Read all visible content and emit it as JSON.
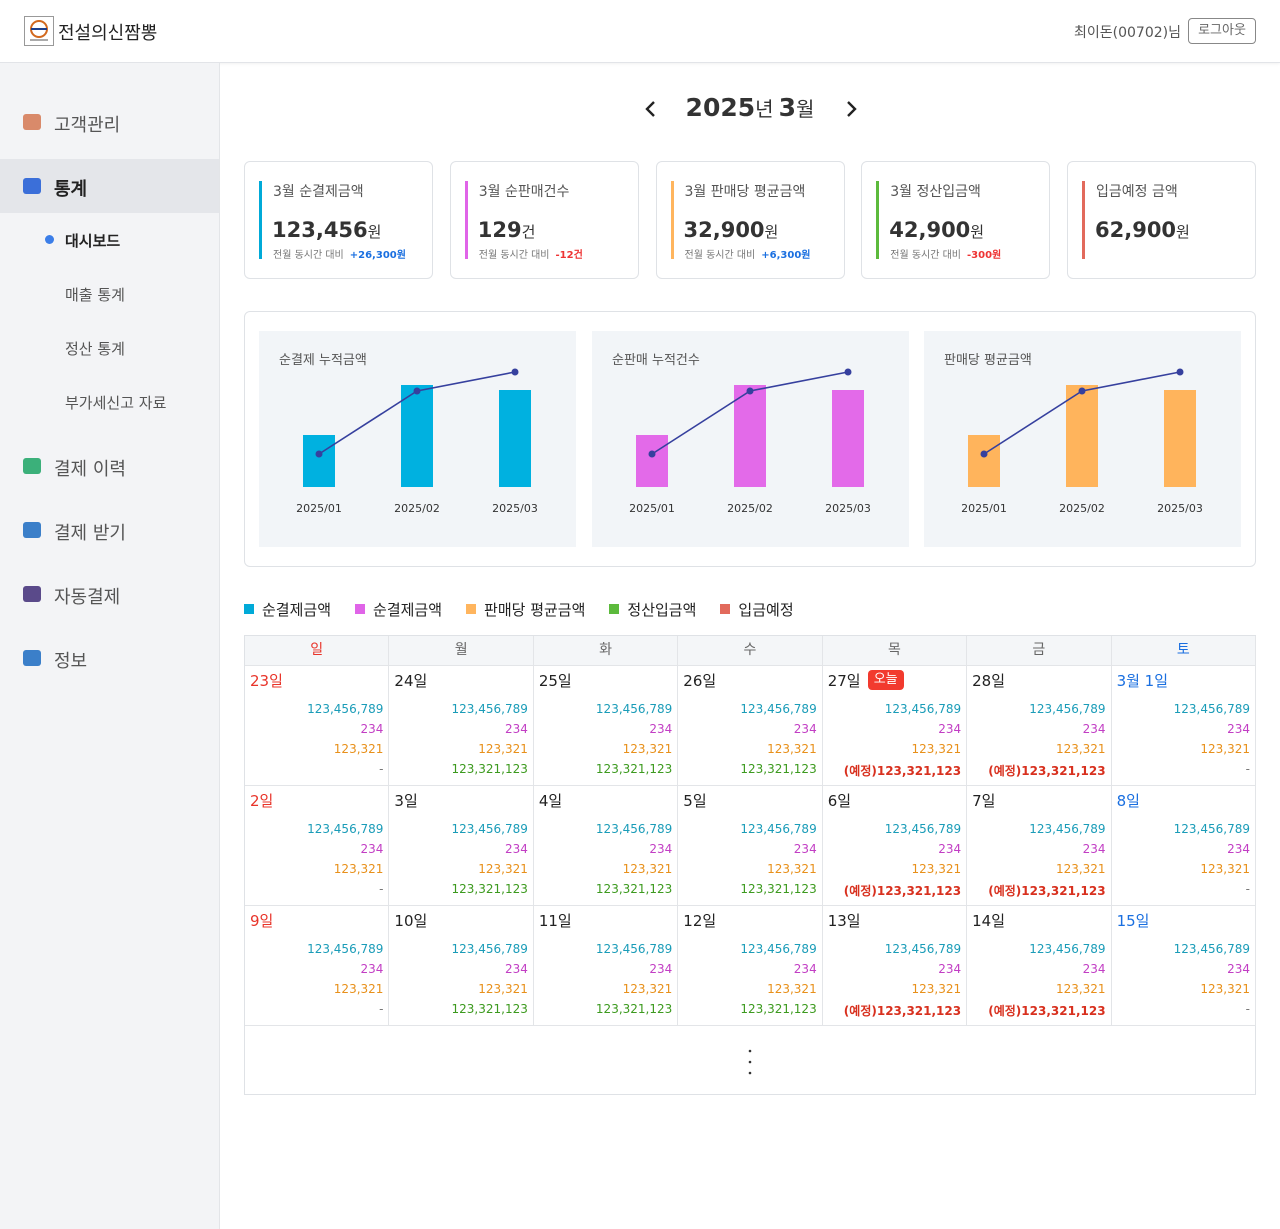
{
  "header": {
    "brand": "전설의신짬뽕",
    "user": "최이돈(00702)님",
    "logout": "로그아웃"
  },
  "sidebar": {
    "menu": [
      {
        "label": "고객관리"
      },
      {
        "label": "통계",
        "active": true,
        "children": [
          {
            "label": "대시보드",
            "active": true
          },
          {
            "label": "매출 통계"
          },
          {
            "label": "정산 통계"
          },
          {
            "label": "부가세신고 자료"
          }
        ]
      },
      {
        "label": "결제 이력"
      },
      {
        "label": "결제 받기"
      },
      {
        "label": "자동결제"
      },
      {
        "label": "정보"
      }
    ]
  },
  "month_nav": {
    "year": "2025",
    "year_unit": "년",
    "month": "3",
    "month_unit": "월"
  },
  "cards": [
    {
      "title": "3월 순결제금액",
      "value": "123,456",
      "unit": "원",
      "compare_label": "전월 동시간 대비",
      "diff": "+26,300원",
      "color": "#00aad8"
    },
    {
      "title": "3월 순판매건수",
      "value": "129",
      "unit": "건",
      "compare_label": "전월 동시간 대비",
      "diff": "-12건",
      "color": "#e064e8"
    },
    {
      "title": "3월 판매당 평균금액",
      "value": "32,900",
      "unit": "원",
      "compare_label": "전월 동시간 대비",
      "diff": "+6,300원",
      "color": "#ffb55e"
    },
    {
      "title": "3월 정산입금액",
      "value": "42,900",
      "unit": "원",
      "compare_label": "전월 동시간 대비",
      "diff": "-300원",
      "color": "#5cba3c"
    },
    {
      "title": "입금예정 금액",
      "value": "62,900",
      "unit": "원",
      "color": "#e26a5c"
    }
  ],
  "chart_data": [
    {
      "type": "bar-line",
      "title": "순결제 누적금액",
      "categories": [
        "2025/01",
        "2025/02",
        "2025/03"
      ],
      "series": [
        {
          "type": "bar",
          "color": "#00b1e0",
          "values": [
            52,
            102,
            97
          ]
        },
        {
          "type": "line",
          "color": "#36409e",
          "values": [
            33,
            96,
            115
          ]
        }
      ],
      "ylim": [
        0,
        130
      ]
    },
    {
      "type": "bar-line",
      "title": "순판매 누적건수",
      "categories": [
        "2025/01",
        "2025/02",
        "2025/03"
      ],
      "series": [
        {
          "type": "bar",
          "color": "#e36ae9",
          "values": [
            52,
            102,
            97
          ]
        },
        {
          "type": "line",
          "color": "#36409e",
          "values": [
            33,
            96,
            115
          ]
        }
      ],
      "ylim": [
        0,
        130
      ]
    },
    {
      "type": "bar-line",
      "title": "판매당 평균금액",
      "categories": [
        "2025/01",
        "2025/02",
        "2025/03"
      ],
      "series": [
        {
          "type": "bar",
          "color": "#ffb45c",
          "values": [
            52,
            102,
            97
          ]
        },
        {
          "type": "line",
          "color": "#36409e",
          "values": [
            33,
            96,
            115
          ]
        }
      ],
      "ylim": [
        0,
        130
      ]
    }
  ],
  "legend": [
    {
      "label": "순결제금액",
      "color": "#00aad8"
    },
    {
      "label": "순결제금액",
      "color": "#e064e8"
    },
    {
      "label": "판매당 평균금액",
      "color": "#ffb55e"
    },
    {
      "label": "정산입금액",
      "color": "#5cba3c"
    },
    {
      "label": "입금예정",
      "color": "#e26a5c"
    }
  ],
  "calendar": {
    "weekdays": [
      "일",
      "월",
      "화",
      "수",
      "목",
      "금",
      "토"
    ],
    "weeks": [
      [
        {
          "date": "23일",
          "amounts": [
            "123,456,789",
            "234",
            "123,321",
            "-"
          ]
        },
        {
          "date": "24일",
          "amounts": [
            "123,456,789",
            "234",
            "123,321",
            "123,321,123"
          ]
        },
        {
          "date": "25일",
          "amounts": [
            "123,456,789",
            "234",
            "123,321",
            "123,321,123"
          ]
        },
        {
          "date": "26일",
          "amounts": [
            "123,456,789",
            "234",
            "123,321",
            "123,321,123"
          ]
        },
        {
          "date": "27일",
          "badge": "오늘",
          "amounts": [
            "123,456,789",
            "234",
            "123,321",
            "(예정)123,321,123"
          ]
        },
        {
          "date": "28일",
          "amounts": [
            "123,456,789",
            "234",
            "123,321",
            "(예정)123,321,123"
          ]
        },
        {
          "date": "3월 1일",
          "amounts": [
            "123,456,789",
            "234",
            "123,321",
            "-"
          ]
        }
      ],
      [
        {
          "date": "2일",
          "amounts": [
            "123,456,789",
            "234",
            "123,321",
            "-"
          ]
        },
        {
          "date": "3일",
          "amounts": [
            "123,456,789",
            "234",
            "123,321",
            "123,321,123"
          ]
        },
        {
          "date": "4일",
          "amounts": [
            "123,456,789",
            "234",
            "123,321",
            "123,321,123"
          ]
        },
        {
          "date": "5일",
          "amounts": [
            "123,456,789",
            "234",
            "123,321",
            "123,321,123"
          ]
        },
        {
          "date": "6일",
          "amounts": [
            "123,456,789",
            "234",
            "123,321",
            "(예정)123,321,123"
          ]
        },
        {
          "date": "7일",
          "amounts": [
            "123,456,789",
            "234",
            "123,321",
            "(예정)123,321,123"
          ]
        },
        {
          "date": "8일",
          "amounts": [
            "123,456,789",
            "234",
            "123,321",
            "-"
          ]
        }
      ],
      [
        {
          "date": "9일",
          "amounts": [
            "123,456,789",
            "234",
            "123,321",
            "-"
          ]
        },
        {
          "date": "10일",
          "amounts": [
            "123,456,789",
            "234",
            "123,321",
            "123,321,123"
          ]
        },
        {
          "date": "11일",
          "amounts": [
            "123,456,789",
            "234",
            "123,321",
            "123,321,123"
          ]
        },
        {
          "date": "12일",
          "amounts": [
            "123,456,789",
            "234",
            "123,321",
            "123,321,123"
          ]
        },
        {
          "date": "13일",
          "amounts": [
            "123,456,789",
            "234",
            "123,321",
            "(예정)123,321,123"
          ]
        },
        {
          "date": "14일",
          "amounts": [
            "123,456,789",
            "234",
            "123,321",
            "(예정)123,321,123"
          ]
        },
        {
          "date": "15일",
          "amounts": [
            "123,456,789",
            "234",
            "123,321",
            "-"
          ]
        }
      ]
    ]
  }
}
